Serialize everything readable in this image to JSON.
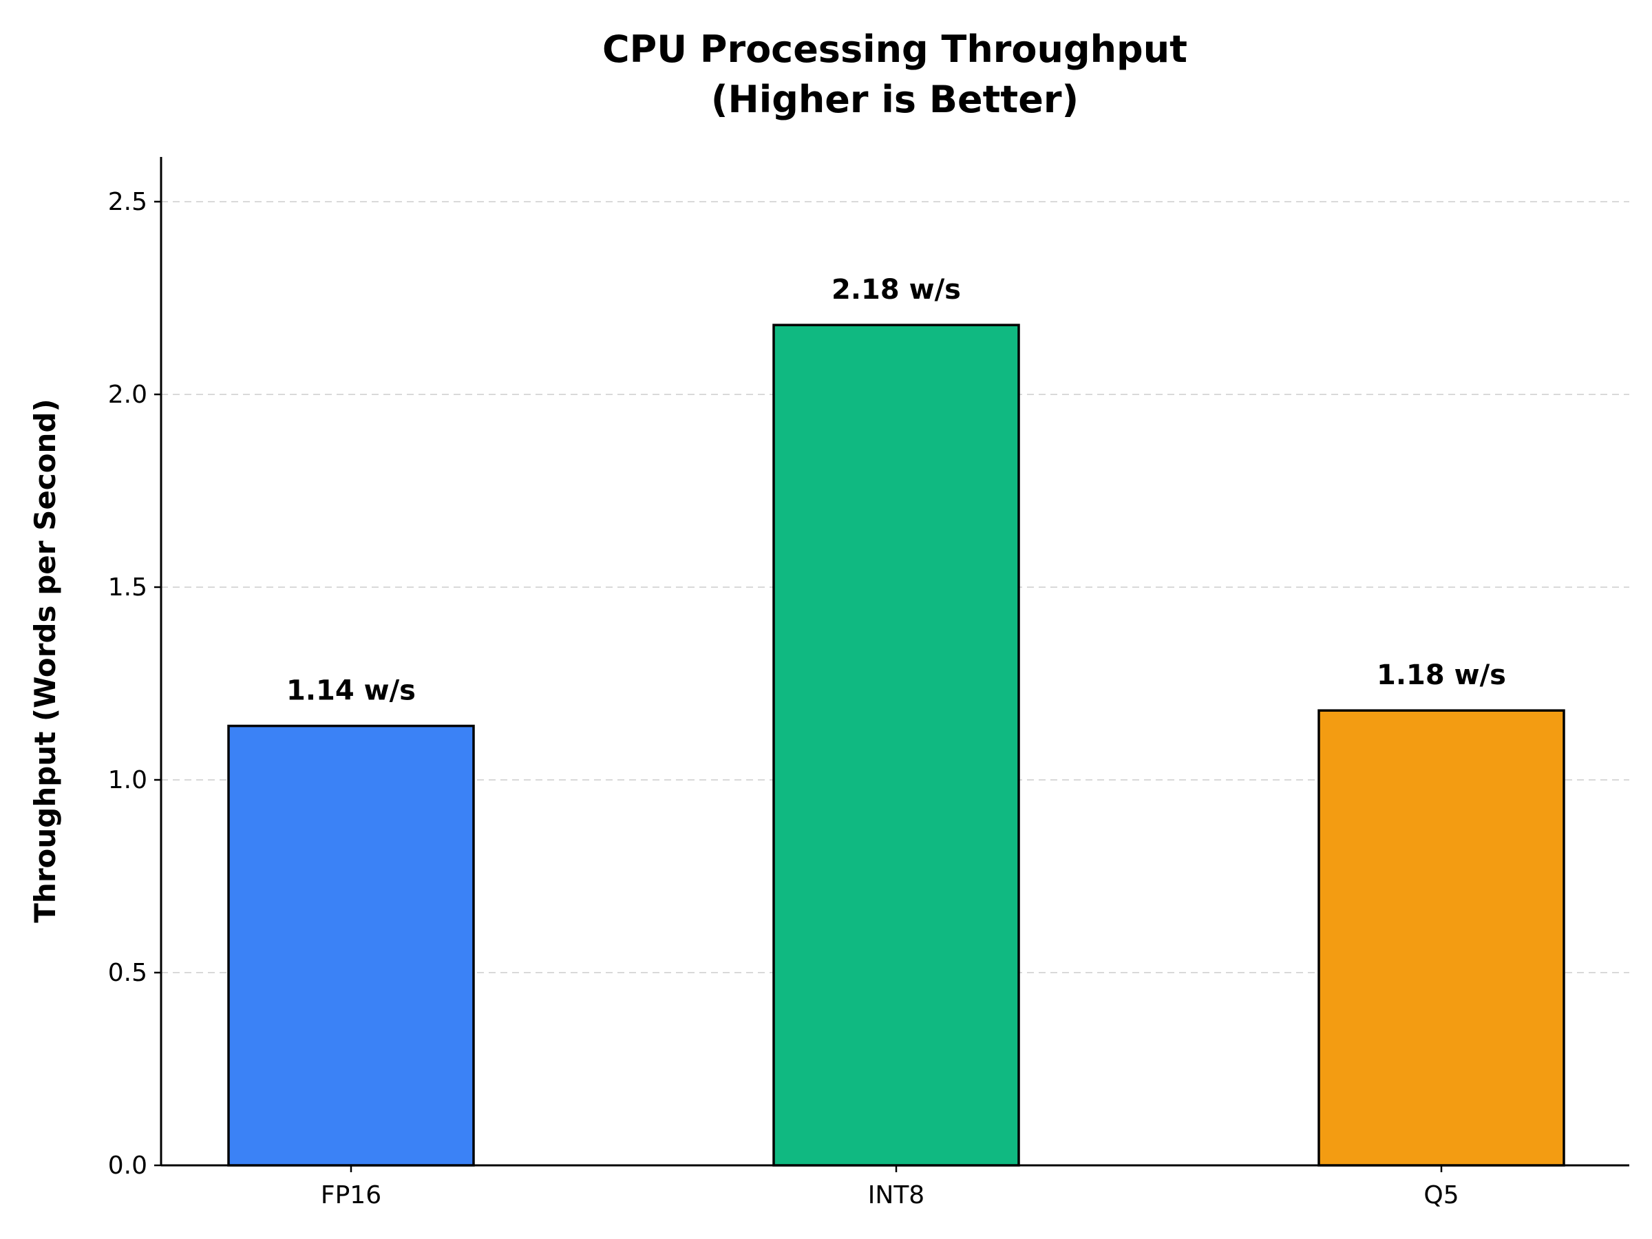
{
  "chart_data": {
    "type": "bar",
    "title": "CPU Processing Throughput",
    "subtitle": "(Higher is Better)",
    "xlabel": "",
    "ylabel": "Throughput (Words per Second)",
    "categories": [
      "FP16",
      "INT8",
      "Q5"
    ],
    "values": [
      1.14,
      2.18,
      1.18
    ],
    "value_labels": [
      "1.14 w/s",
      "2.18 w/s",
      "1.18 w/s"
    ],
    "colors": [
      "#3b82f6",
      "#10b981",
      "#f39c12"
    ],
    "ylim": [
      0,
      2.616
    ],
    "yticks": [
      0.0,
      0.5,
      1.0,
      1.5,
      2.0,
      2.5
    ],
    "ytick_labels": [
      "0.0",
      "0.5",
      "1.0",
      "1.5",
      "2.0",
      "2.5"
    ],
    "grid": "y-dashed",
    "legend": "none"
  }
}
